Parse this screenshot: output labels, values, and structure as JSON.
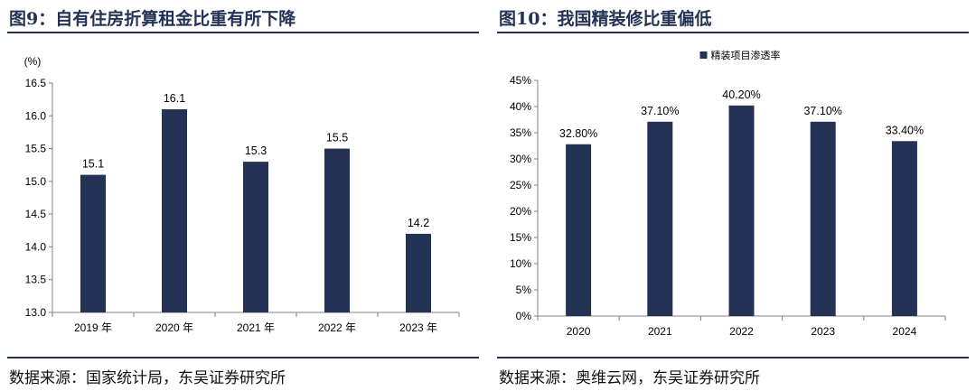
{
  "left": {
    "title": "图9：自有住房折算租金比重有所下降",
    "source": "数据来源：国家统计局，东吴证券研究所"
  },
  "right": {
    "title": "图10：我国精装修比重偏低",
    "source": "数据来源：奥维云网，东吴证券研究所"
  },
  "chart_data": [
    {
      "type": "bar",
      "title": "",
      "unit_label": "(%)",
      "categories": [
        "2019 年",
        "2020 年",
        "2021 年",
        "2022 年",
        "2023 年"
      ],
      "values": [
        15.1,
        16.1,
        15.3,
        15.5,
        14.2
      ],
      "data_labels": [
        "15.1",
        "16.1",
        "15.3",
        "15.5",
        "14.2"
      ],
      "ylim": [
        13.0,
        16.5
      ],
      "yticks": [
        "13.0",
        "13.5",
        "14.0",
        "14.5",
        "15.0",
        "15.5",
        "16.0",
        "16.5"
      ],
      "bar_color": "#243355",
      "grid": false
    },
    {
      "type": "bar",
      "title": "",
      "categories": [
        "2020",
        "2021",
        "2022",
        "2023",
        "2024"
      ],
      "series": [
        {
          "name": "精装项目渗透率",
          "values": [
            32.8,
            37.1,
            40.2,
            37.1,
            33.4
          ]
        }
      ],
      "data_labels": [
        "32.80%",
        "37.10%",
        "40.20%",
        "37.10%",
        "33.40%"
      ],
      "ylim": [
        0,
        45
      ],
      "yticks": [
        "0%",
        "5%",
        "10%",
        "15%",
        "20%",
        "25%",
        "30%",
        "35%",
        "40%",
        "45%"
      ],
      "legend_position": "top-center",
      "bar_color": "#243355",
      "grid": false
    }
  ]
}
